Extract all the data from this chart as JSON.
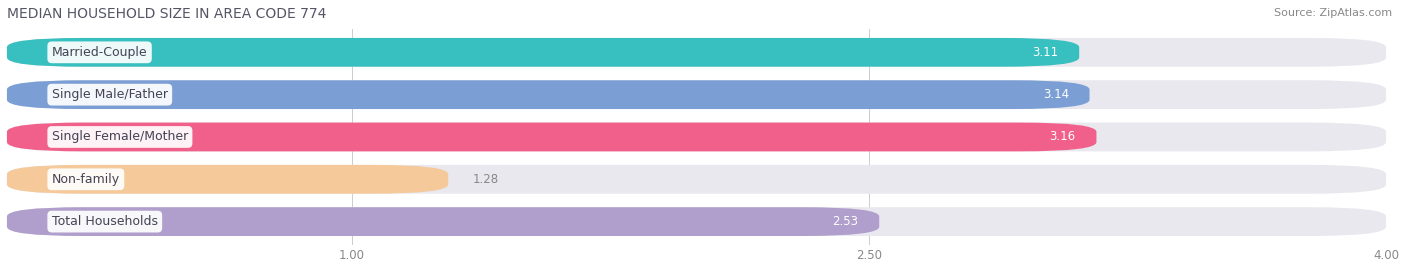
{
  "title": "MEDIAN HOUSEHOLD SIZE IN AREA CODE 774",
  "source": "Source: ZipAtlas.com",
  "categories": [
    "Married-Couple",
    "Single Male/Father",
    "Single Female/Mother",
    "Non-family",
    "Total Households"
  ],
  "values": [
    3.11,
    3.14,
    3.16,
    1.28,
    2.53
  ],
  "bar_colors": [
    "#38bfbf",
    "#7b9fd4",
    "#f0608a",
    "#f5c99a",
    "#b09fcc"
  ],
  "bar_bg_color": "#e8e8ee",
  "xlim": [
    0,
    4.0
  ],
  "xticks": [
    1.0,
    2.5,
    4.0
  ],
  "title_fontsize": 10,
  "source_fontsize": 8,
  "bar_label_fontsize": 8.5,
  "category_fontsize": 9,
  "tick_fontsize": 8.5,
  "bar_height": 0.68,
  "bg_color": "#ffffff",
  "text_color": "#444455"
}
